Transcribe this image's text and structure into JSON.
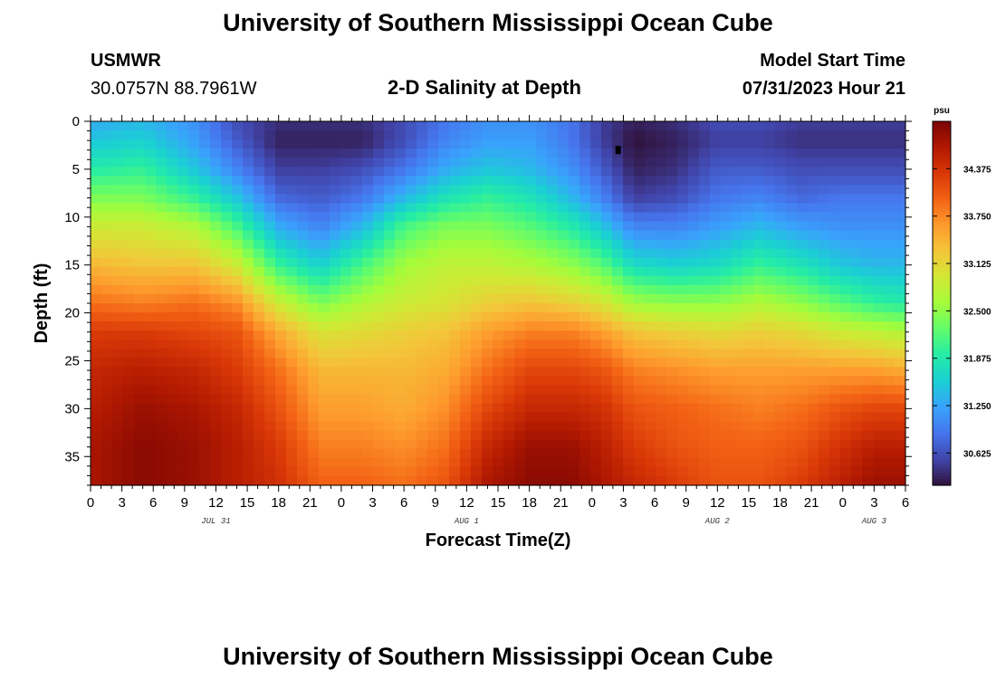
{
  "header": {
    "title": "University of Southern Mississippi Ocean Cube",
    "station": "USMWR",
    "coords": "30.0757N  88.7961W",
    "chart_title": "2-D Salinity at Depth",
    "model_label": "Model Start Time",
    "model_time": "07/31/2023 Hour 21"
  },
  "footer": {
    "title": "University of Southern Mississippi Ocean Cube"
  },
  "colors": {
    "cmap": [
      "#30123b",
      "#4145ab",
      "#4675ed",
      "#39a2fc",
      "#1bcfd4",
      "#24eca6",
      "#61fc6c",
      "#a4fc3b",
      "#d1e834",
      "#f3c63a",
      "#fe9b2d",
      "#f36315",
      "#d93807",
      "#b11901",
      "#7a0403"
    ]
  },
  "chart_data": {
    "type": "heatmap",
    "title": "2-D Salinity at Depth",
    "xlabel": "Forecast Time(Z)",
    "ylabel": "Depth (ft)",
    "x_hours_from_jul31_00z": [
      0,
      78
    ],
    "ylim": [
      0,
      38
    ],
    "x_ticks": [
      "0",
      "3",
      "6",
      "9",
      "12",
      "15",
      "18",
      "21",
      "0",
      "3",
      "6",
      "9",
      "12",
      "15",
      "18",
      "21",
      "0",
      "3",
      "6",
      "9",
      "12",
      "15",
      "18",
      "21",
      "0",
      "3",
      "6"
    ],
    "y_ticks": [
      "0",
      "5",
      "10",
      "15",
      "20",
      "25",
      "30",
      "35"
    ],
    "date_labels": [
      {
        "label": "JUL 31",
        "hour": 12
      },
      {
        "label": "AUG 1",
        "hour": 36
      },
      {
        "label": "AUG 2",
        "hour": 60
      },
      {
        "label": "AUG 3",
        "hour": 75
      }
    ],
    "colorbar": {
      "unit": "psu",
      "range": [
        30.2,
        35.0
      ],
      "ticks": [
        "30.625",
        "31.250",
        "31.875",
        "32.500",
        "33.125",
        "33.750",
        "34.375"
      ]
    },
    "marker": {
      "hour": 50.5,
      "depth": 3
    },
    "depth_profile_nodes": [
      0,
      2,
      5,
      8,
      11,
      15,
      19,
      22,
      26,
      30,
      34,
      38
    ],
    "salinity_profiles": [
      {
        "hour": 0,
        "psu": [
          31.3,
          31.5,
          31.9,
          32.4,
          32.9,
          33.4,
          33.9,
          34.3,
          34.5,
          34.6,
          34.7,
          34.7
        ]
      },
      {
        "hour": 5,
        "psu": [
          31.4,
          31.6,
          32.0,
          32.4,
          32.9,
          33.3,
          33.8,
          34.3,
          34.6,
          34.8,
          34.9,
          34.9
        ]
      },
      {
        "hour": 10,
        "psu": [
          31.1,
          31.2,
          31.5,
          32.0,
          32.7,
          33.3,
          33.9,
          34.2,
          34.5,
          34.7,
          34.8,
          34.8
        ]
      },
      {
        "hour": 14,
        "psu": [
          30.6,
          30.7,
          31.0,
          31.5,
          32.1,
          32.9,
          33.7,
          34.1,
          34.3,
          34.5,
          34.6,
          34.6
        ]
      },
      {
        "hour": 18,
        "psu": [
          30.4,
          30.3,
          30.5,
          30.8,
          31.3,
          32.0,
          32.9,
          33.5,
          33.9,
          34.1,
          34.3,
          34.4
        ]
      },
      {
        "hour": 22,
        "psu": [
          30.4,
          30.3,
          30.5,
          30.7,
          31.0,
          31.6,
          32.4,
          33.0,
          33.4,
          33.6,
          33.8,
          34.0
        ]
      },
      {
        "hour": 26,
        "psu": [
          30.4,
          30.3,
          30.6,
          30.9,
          31.4,
          32.1,
          32.7,
          33.1,
          33.4,
          33.6,
          33.8,
          34.0
        ]
      },
      {
        "hour": 30,
        "psu": [
          30.6,
          30.6,
          30.9,
          31.4,
          32.1,
          32.6,
          32.9,
          33.2,
          33.4,
          33.5,
          33.7,
          33.9
        ]
      },
      {
        "hour": 34,
        "psu": [
          30.9,
          31.0,
          31.3,
          31.8,
          32.4,
          32.8,
          33.0,
          33.3,
          33.5,
          33.7,
          33.9,
          34.1
        ]
      },
      {
        "hour": 38,
        "psu": [
          31.1,
          31.2,
          31.5,
          32.0,
          32.4,
          32.8,
          33.2,
          33.6,
          33.9,
          34.2,
          34.5,
          34.7
        ]
      },
      {
        "hour": 42,
        "psu": [
          31.1,
          31.2,
          31.4,
          31.8,
          32.2,
          32.7,
          33.3,
          33.8,
          34.2,
          34.5,
          34.8,
          34.9
        ]
      },
      {
        "hour": 46,
        "psu": [
          30.9,
          30.9,
          31.1,
          31.4,
          31.9,
          32.5,
          33.2,
          33.8,
          34.2,
          34.5,
          34.8,
          34.9
        ]
      },
      {
        "hour": 49,
        "psu": [
          30.5,
          30.5,
          30.7,
          31.0,
          31.5,
          32.2,
          33.0,
          33.6,
          34.1,
          34.4,
          34.6,
          34.7
        ]
      },
      {
        "hour": 52,
        "psu": [
          30.3,
          30.2,
          30.3,
          30.5,
          31.0,
          31.7,
          32.6,
          33.3,
          33.8,
          34.1,
          34.3,
          34.5
        ]
      },
      {
        "hour": 56,
        "psu": [
          30.4,
          30.3,
          30.4,
          30.6,
          31.0,
          31.6,
          32.5,
          33.2,
          33.7,
          34.0,
          34.1,
          34.3
        ]
      },
      {
        "hour": 60,
        "psu": [
          30.6,
          30.5,
          30.7,
          30.9,
          31.2,
          31.7,
          32.5,
          33.1,
          33.6,
          33.9,
          34.0,
          34.1
        ]
      },
      {
        "hour": 64,
        "psu": [
          30.6,
          30.5,
          30.7,
          31.0,
          31.4,
          32.0,
          32.7,
          33.2,
          33.6,
          33.8,
          34.0,
          34.1
        ]
      },
      {
        "hour": 68,
        "psu": [
          30.5,
          30.4,
          30.6,
          30.8,
          31.2,
          31.8,
          32.5,
          33.1,
          33.6,
          33.9,
          34.1,
          34.3
        ]
      },
      {
        "hour": 72,
        "psu": [
          30.5,
          30.4,
          30.6,
          30.9,
          31.1,
          31.5,
          32.2,
          32.9,
          33.6,
          34.1,
          34.4,
          34.6
        ]
      },
      {
        "hour": 75,
        "psu": [
          30.5,
          30.4,
          30.6,
          30.9,
          31.1,
          31.4,
          32.0,
          32.8,
          33.6,
          34.2,
          34.6,
          34.8
        ]
      },
      {
        "hour": 78,
        "psu": [
          30.5,
          30.4,
          30.6,
          30.9,
          31.1,
          31.4,
          31.9,
          32.7,
          33.5,
          34.2,
          34.6,
          34.8
        ]
      }
    ]
  }
}
